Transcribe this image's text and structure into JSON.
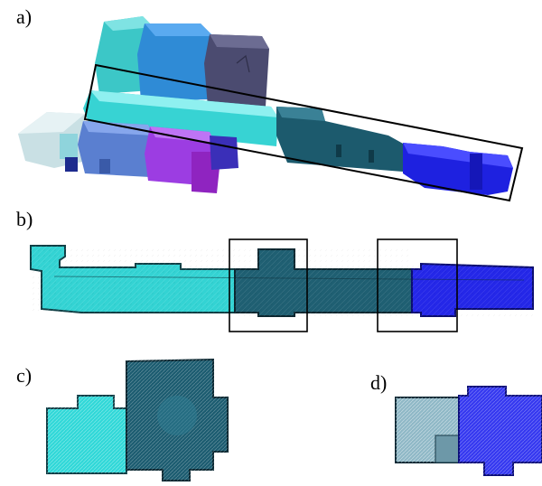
{
  "panels": {
    "a": {
      "label": "a)"
    },
    "b": {
      "label": "b)"
    },
    "c": {
      "label": "c)"
    },
    "d": {
      "label": "d)"
    }
  },
  "colors": {
    "cyan": "#34d6d6",
    "teal_dark": "#1d5b6e",
    "blue": "#1f22e6",
    "sky_blue": "#2d8ad8",
    "slate": "#4a4a6e",
    "steel_blue": "#5577c9",
    "purple": "#9a3be0",
    "magenta": "#9a2bc7",
    "light_grey": "#c8dfe4",
    "outline": "#000000"
  }
}
